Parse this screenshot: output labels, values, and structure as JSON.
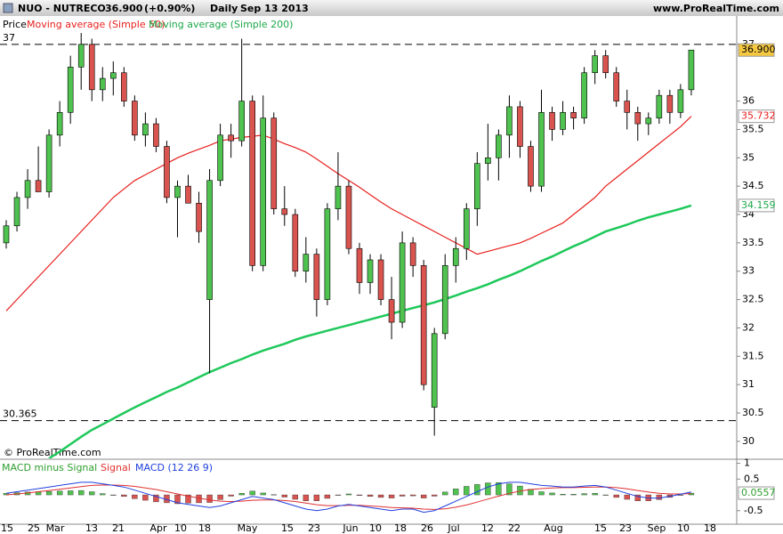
{
  "header": {
    "instrument": "NUO - NUTRECO",
    "last": "36.900",
    "change": "(+0.90%)",
    "period": "Daily",
    "date": "Sep 13 2013",
    "site": "www.ProRealTime.com",
    "copyright": "© ProRealTime.com"
  },
  "chart_data": [
    {
      "type": "candlestick",
      "legend_label": "Price",
      "up_color": "#4fc24f",
      "down_color": "#d9534f",
      "ohlc": [
        [
          33.5,
          33.9,
          33.4,
          33.8
        ],
        [
          33.8,
          34.4,
          33.7,
          34.3
        ],
        [
          34.3,
          34.8,
          34.1,
          34.6
        ],
        [
          34.6,
          35.2,
          34.4,
          34.4
        ],
        [
          34.4,
          35.5,
          34.3,
          35.4
        ],
        [
          35.4,
          36.0,
          35.2,
          35.8
        ],
        [
          35.8,
          36.8,
          35.6,
          36.6
        ],
        [
          36.6,
          37.2,
          36.2,
          37.0
        ],
        [
          37.0,
          37.1,
          36.0,
          36.2
        ],
        [
          36.2,
          36.6,
          36.0,
          36.4
        ],
        [
          36.4,
          36.7,
          36.1,
          36.5
        ],
        [
          36.5,
          36.6,
          35.9,
          36.0
        ],
        [
          36.0,
          36.1,
          35.3,
          35.4
        ],
        [
          35.4,
          35.8,
          35.2,
          35.6
        ],
        [
          35.6,
          35.7,
          35.1,
          35.2
        ],
        [
          35.2,
          35.3,
          34.2,
          34.3
        ],
        [
          34.3,
          34.6,
          33.6,
          34.5
        ],
        [
          34.5,
          34.7,
          34.2,
          34.2
        ],
        [
          34.2,
          34.4,
          33.5,
          33.7
        ],
        [
          32.5,
          34.8,
          31.2,
          34.6
        ],
        [
          34.6,
          35.6,
          34.5,
          35.4
        ],
        [
          35.4,
          35.6,
          35.0,
          35.3
        ],
        [
          35.3,
          37.1,
          35.2,
          36.0
        ],
        [
          36.0,
          36.1,
          33.0,
          33.1
        ],
        [
          33.1,
          36.1,
          33.0,
          35.7
        ],
        [
          35.7,
          35.8,
          34.0,
          34.1
        ],
        [
          34.1,
          34.5,
          33.8,
          34.0
        ],
        [
          34.0,
          34.1,
          32.9,
          33.0
        ],
        [
          33.0,
          33.6,
          32.8,
          33.3
        ],
        [
          33.3,
          33.4,
          32.2,
          32.5
        ],
        [
          32.5,
          34.2,
          32.4,
          34.1
        ],
        [
          34.1,
          35.1,
          33.9,
          34.5
        ],
        [
          34.5,
          34.6,
          33.3,
          33.4
        ],
        [
          33.4,
          33.5,
          32.6,
          32.8
        ],
        [
          32.8,
          33.3,
          32.6,
          33.2
        ],
        [
          33.2,
          33.3,
          32.4,
          32.5
        ],
        [
          32.5,
          32.9,
          31.8,
          32.1
        ],
        [
          32.1,
          33.7,
          32.0,
          33.5
        ],
        [
          33.5,
          33.6,
          32.9,
          33.1
        ],
        [
          33.1,
          33.2,
          30.9,
          31.0
        ],
        [
          30.6,
          32.0,
          30.1,
          31.9
        ],
        [
          31.9,
          33.3,
          31.8,
          33.1
        ],
        [
          33.1,
          33.6,
          32.8,
          33.4
        ],
        [
          33.4,
          34.2,
          33.2,
          34.1
        ],
        [
          34.1,
          35.1,
          33.8,
          34.9
        ],
        [
          34.9,
          35.6,
          34.6,
          35.0
        ],
        [
          35.0,
          35.5,
          34.6,
          35.4
        ],
        [
          35.4,
          36.1,
          35.0,
          35.9
        ],
        [
          35.9,
          36.0,
          35.0,
          35.2
        ],
        [
          35.2,
          35.3,
          34.4,
          34.5
        ],
        [
          34.5,
          36.2,
          34.4,
          35.8
        ],
        [
          35.8,
          35.9,
          35.3,
          35.5
        ],
        [
          35.5,
          36.0,
          35.4,
          35.8
        ],
        [
          35.8,
          35.9,
          35.5,
          35.7
        ],
        [
          35.7,
          36.6,
          35.6,
          36.5
        ],
        [
          36.5,
          36.9,
          36.3,
          36.8
        ],
        [
          36.8,
          36.9,
          36.4,
          36.5
        ],
        [
          36.5,
          36.6,
          35.9,
          36.0
        ],
        [
          36.0,
          36.2,
          35.5,
          35.8
        ],
        [
          35.8,
          35.9,
          35.3,
          35.6
        ],
        [
          35.6,
          35.8,
          35.4,
          35.7
        ],
        [
          35.7,
          36.2,
          35.6,
          36.1
        ],
        [
          36.1,
          36.2,
          35.6,
          35.8
        ],
        [
          35.8,
          36.3,
          35.7,
          36.2
        ],
        [
          36.2,
          36.9,
          36.1,
          36.9
        ]
      ],
      "last_label": "36.900",
      "series": [
        {
          "name": "Moving average (Simple 50)",
          "color": "#e8201e",
          "last_label": "35.732",
          "values": [
            32.3,
            32.5,
            32.7,
            32.9,
            33.1,
            33.3,
            33.5,
            33.7,
            33.9,
            34.1,
            34.3,
            34.45,
            34.6,
            34.7,
            34.8,
            34.9,
            35.0,
            35.08,
            35.15,
            35.22,
            35.3,
            35.33,
            35.36,
            35.38,
            35.4,
            35.33,
            35.25,
            35.18,
            35.1,
            34.98,
            34.85,
            34.72,
            34.6,
            34.48,
            34.35,
            34.22,
            34.1,
            34.0,
            33.9,
            33.8,
            33.7,
            33.6,
            33.5,
            33.4,
            33.3,
            33.35,
            33.4,
            33.45,
            33.5,
            33.58,
            33.67,
            33.76,
            33.85,
            34.0,
            34.15,
            34.3,
            34.5,
            34.65,
            34.8,
            34.95,
            35.1,
            35.25,
            35.4,
            35.55,
            35.732
          ]
        },
        {
          "name": "Moving average (Simple 200)",
          "color": "#1ec85a",
          "last_label": "34.159",
          "values": [
            null,
            null,
            null,
            null,
            29.7,
            29.82,
            29.95,
            30.08,
            30.2,
            30.3,
            30.4,
            30.5,
            30.6,
            30.69,
            30.78,
            30.87,
            30.95,
            31.04,
            31.13,
            31.22,
            31.3,
            31.38,
            31.45,
            31.53,
            31.6,
            31.66,
            31.72,
            31.79,
            31.85,
            31.9,
            31.95,
            32.0,
            32.05,
            32.1,
            32.15,
            32.2,
            32.25,
            32.3,
            32.35,
            32.4,
            32.45,
            32.51,
            32.57,
            32.64,
            32.7,
            32.77,
            32.85,
            32.92,
            33.0,
            33.09,
            33.18,
            33.26,
            33.35,
            33.44,
            33.52,
            33.61,
            33.7,
            33.76,
            33.82,
            33.89,
            33.95,
            34.0,
            34.05,
            34.1,
            34.159
          ]
        }
      ],
      "hlines": [
        37,
        30.365
      ],
      "ylim": [
        29.7,
        37.5
      ],
      "yticks": [
        30,
        30.5,
        31,
        31.5,
        32,
        32.5,
        33,
        33.5,
        34,
        34.5,
        35,
        35.5,
        36,
        37
      ],
      "xticks": [
        "15",
        "25",
        "Mar",
        "13",
        "21",
        "Apr",
        "10",
        "18",
        "May",
        "15",
        "23",
        "Jun",
        "10",
        "18",
        "26",
        "Jul",
        "12",
        "22",
        "Aug",
        "15",
        "23",
        "Sep",
        "10",
        "18"
      ]
    },
    {
      "type": "macd",
      "series": [
        {
          "name": "MACD minus Signal",
          "pos_color": "#4fc24f",
          "neg_color": "#d9534f",
          "last_label": "0.0557",
          "values": [
            0.05,
            0.07,
            0.09,
            0.1,
            0.11,
            0.12,
            0.13,
            0.14,
            0.1,
            0.04,
            -0.01,
            -0.05,
            -0.12,
            -0.17,
            -0.22,
            -0.25,
            -0.28,
            -0.26,
            -0.25,
            -0.24,
            -0.15,
            -0.04,
            0.05,
            0.12,
            0.06,
            0.01,
            -0.07,
            -0.14,
            -0.19,
            -0.19,
            -0.11,
            -0.01,
            0.03,
            -0.02,
            -0.05,
            -0.08,
            -0.1,
            -0.04,
            -0.03,
            -0.1,
            -0.04,
            0.09,
            0.19,
            0.27,
            0.33,
            0.38,
            0.39,
            0.35,
            0.28,
            0.18,
            0.1,
            0.06,
            0.02,
            0.02,
            0.04,
            0.05,
            0.0,
            -0.08,
            -0.14,
            -0.19,
            -0.19,
            -0.15,
            -0.08,
            -0.01,
            0.0557
          ]
        },
        {
          "name": "Signal",
          "color": "#e03030",
          "values": [
            0.0,
            0.03,
            0.06,
            0.1,
            0.14,
            0.18,
            0.22,
            0.26,
            0.3,
            0.31,
            0.31,
            0.3,
            0.27,
            0.22,
            0.17,
            0.1,
            0.03,
            -0.04,
            -0.1,
            -0.16,
            -0.2,
            -0.21,
            -0.2,
            -0.17,
            -0.16,
            -0.16,
            -0.18,
            -0.21,
            -0.26,
            -0.31,
            -0.34,
            -0.34,
            -0.33,
            -0.33,
            -0.35,
            -0.37,
            -0.4,
            -0.41,
            -0.42,
            -0.45,
            -0.46,
            -0.44,
            -0.39,
            -0.32,
            -0.23,
            -0.13,
            -0.04,
            0.05,
            0.12,
            0.17,
            0.2,
            0.22,
            0.23,
            0.23,
            0.24,
            0.25,
            0.25,
            0.23,
            0.19,
            0.14,
            0.09,
            0.05,
            0.03,
            0.03,
            0.04
          ]
        },
        {
          "name": "MACD (12 26 9)",
          "color": "#2040e0",
          "values": [
            0.05,
            0.1,
            0.15,
            0.2,
            0.25,
            0.3,
            0.35,
            0.4,
            0.4,
            0.35,
            0.3,
            0.25,
            0.15,
            0.05,
            -0.05,
            -0.15,
            -0.25,
            -0.3,
            -0.35,
            -0.4,
            -0.35,
            -0.25,
            -0.15,
            -0.05,
            -0.1,
            -0.15,
            -0.25,
            -0.35,
            -0.45,
            -0.5,
            -0.45,
            -0.35,
            -0.3,
            -0.35,
            -0.4,
            -0.45,
            -0.5,
            -0.45,
            -0.45,
            -0.55,
            -0.5,
            -0.35,
            -0.2,
            -0.05,
            0.1,
            0.25,
            0.35,
            0.4,
            0.4,
            0.35,
            0.3,
            0.28,
            0.25,
            0.25,
            0.28,
            0.3,
            0.25,
            0.15,
            0.05,
            -0.05,
            -0.1,
            -0.1,
            -0.05,
            0.02,
            0.0957
          ]
        }
      ],
      "ylim": [
        -0.9,
        1.1
      ],
      "yticks": [
        1,
        0.5,
        -0.5
      ]
    }
  ]
}
